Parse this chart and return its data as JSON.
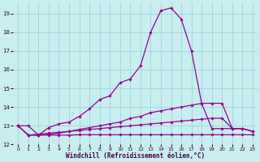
{
  "xlabel": "Windchill (Refroidissement éolien,°C)",
  "bg_color": "#c8eef0",
  "grid_color": "#96d0d8",
  "line_color": "#990099",
  "xlim": [
    -0.5,
    23.5
  ],
  "ylim": [
    12,
    19.6
  ],
  "xticks": [
    0,
    1,
    2,
    3,
    4,
    5,
    6,
    7,
    8,
    9,
    10,
    11,
    12,
    13,
    14,
    15,
    16,
    17,
    18,
    19,
    20,
    21,
    22,
    23
  ],
  "yticks": [
    12,
    13,
    14,
    15,
    16,
    17,
    18,
    19
  ],
  "s1_x": [
    0,
    1,
    2,
    3,
    4,
    5,
    6,
    7,
    8,
    9,
    10,
    11,
    12,
    13,
    14,
    15,
    16,
    17,
    18,
    19,
    20,
    21,
    22,
    23
  ],
  "s1_y": [
    13.0,
    13.0,
    12.5,
    12.9,
    13.1,
    13.2,
    13.5,
    13.9,
    14.4,
    14.6,
    15.3,
    15.5,
    16.2,
    18.0,
    19.15,
    19.3,
    18.7,
    17.0,
    14.2,
    12.85,
    12.85,
    12.85,
    12.85,
    12.7
  ],
  "s2_x": [
    0,
    1,
    2,
    3,
    4,
    5,
    6,
    7,
    8,
    9,
    10,
    11,
    12,
    13,
    14,
    15,
    16,
    17,
    18,
    19,
    20,
    21,
    22,
    23
  ],
  "s2_y": [
    13.0,
    12.5,
    12.5,
    12.55,
    12.6,
    12.7,
    12.8,
    12.9,
    13.0,
    13.1,
    13.2,
    13.4,
    13.5,
    13.7,
    13.8,
    13.9,
    14.0,
    14.1,
    14.2,
    14.2,
    14.2,
    12.85,
    12.85,
    12.7
  ],
  "s3_x": [
    0,
    1,
    2,
    3,
    4,
    5,
    6,
    7,
    8,
    9,
    10,
    11,
    12,
    13,
    14,
    15,
    16,
    17,
    18,
    19,
    20,
    21,
    22,
    23
  ],
  "s3_y": [
    13.0,
    12.5,
    12.55,
    12.6,
    12.65,
    12.7,
    12.75,
    12.8,
    12.85,
    12.9,
    12.95,
    13.0,
    13.05,
    13.1,
    13.15,
    13.2,
    13.25,
    13.3,
    13.35,
    13.4,
    13.4,
    12.85,
    12.85,
    12.7
  ],
  "s4_x": [
    0,
    1,
    2,
    3,
    4,
    5,
    6,
    7,
    8,
    9,
    10,
    11,
    12,
    13,
    14,
    15,
    16,
    17,
    18,
    19,
    20,
    21,
    22,
    23
  ],
  "s4_y": [
    13.0,
    12.5,
    12.5,
    12.5,
    12.5,
    12.5,
    12.52,
    12.52,
    12.52,
    12.52,
    12.52,
    12.52,
    12.52,
    12.52,
    12.52,
    12.52,
    12.52,
    12.52,
    12.52,
    12.52,
    12.52,
    12.52,
    12.52,
    12.52
  ]
}
